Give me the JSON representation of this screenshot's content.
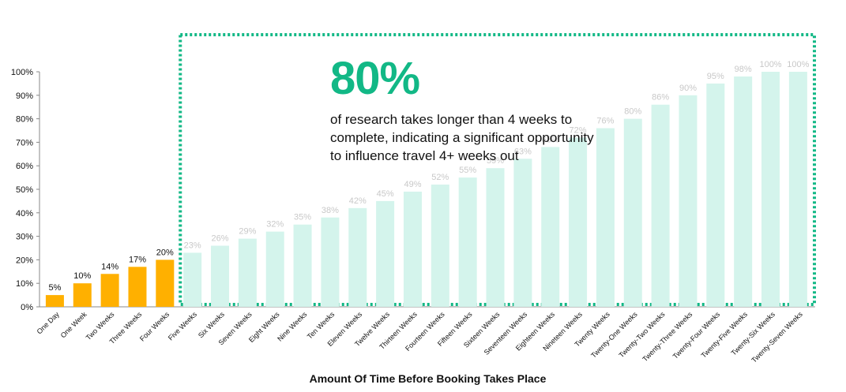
{
  "chart_data": {
    "type": "bar",
    "xlabel": "Amount Of Time Before Booking Takes Place",
    "ylabel": "",
    "ylim": [
      0,
      100
    ],
    "yticks": [
      "0%",
      "10%",
      "20%",
      "30%",
      "40%",
      "50%",
      "60%",
      "70%",
      "80%",
      "90%",
      "100%"
    ],
    "categories": [
      "One Day",
      "One Week",
      "Two Weeks",
      "Three Weeks",
      "Four Weeks",
      "Five Weeks",
      "Six Weeks",
      "Seven Weeks",
      "Eight Weeks",
      "Nine Weeks",
      "Ten Weeks",
      "Eleven Weeks",
      "Twelve Weeks",
      "Thirteen Weeks",
      "Fourteen Weeks",
      "Fifteen Weeks",
      "Sixteen Weeks",
      "Seventeen Weeks",
      "Eighteen Weeks",
      "Nineteen Weeks",
      "Twenty Weeks",
      "Twenty-One Weeks",
      "Twenty-Two Weeks",
      "Twenty-Three Weeks",
      "Twenty-Four Weeks",
      "Twenty-Five Weeks",
      "Twenty-Six Weeks",
      "Twenty-Seven Weeks"
    ],
    "values": [
      5,
      10,
      14,
      17,
      20,
      23,
      26,
      29,
      32,
      35,
      38,
      42,
      45,
      49,
      52,
      55,
      59,
      63,
      68,
      72,
      76,
      80,
      86,
      90,
      95,
      98,
      100,
      100
    ],
    "data_labels": [
      "5%",
      "10%",
      "14%",
      "17%",
      "20%",
      "23%",
      "26%",
      "29%",
      "32%",
      "35%",
      "38%",
      "42%",
      "45%",
      "49%",
      "52%",
      "55%",
      "59%",
      "63%",
      "68%",
      "72%",
      "76%",
      "80%",
      "86%",
      "90%",
      "95%",
      "98%",
      "100%",
      "100%"
    ],
    "highlighted_count": 5,
    "grid": false,
    "legend": "none"
  },
  "callout": {
    "headline": "80%",
    "text": "of research takes longer than 4 weeks to\ncomplete, indicating a significant opportunity\nto influence travel 4+ weeks out"
  },
  "colors": {
    "highlight_bar": "#FFB000",
    "faded_bar": "#D4F4EC",
    "faded_label": "#C8C8C8",
    "accent": "#12B886",
    "axis": "#888888",
    "text": "#111111"
  }
}
